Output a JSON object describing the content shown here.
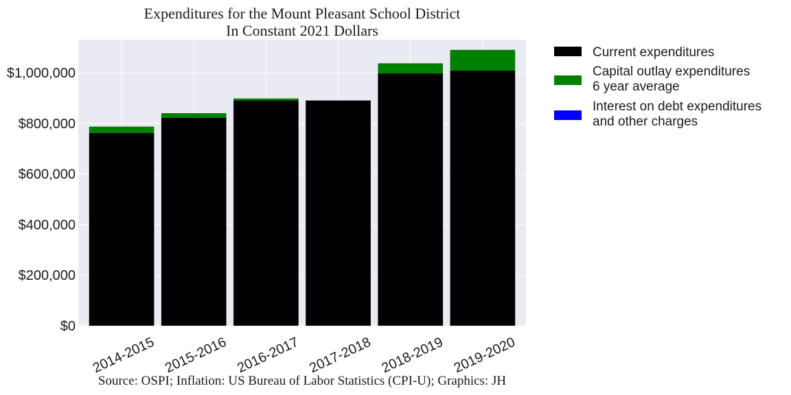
{
  "chart_data": {
    "type": "bar",
    "stacked": true,
    "title": [
      "Expenditures for the Mount Pleasant School District",
      "In Constant 2021 Dollars"
    ],
    "xlabel": "",
    "ylabel": "",
    "categories": [
      "2014-2015",
      "2015-2016",
      "2016-2017",
      "2017-2018",
      "2018-2019",
      "2019-2020"
    ],
    "ylim": [
      0,
      1130000
    ],
    "yticks": [
      0,
      200000,
      400000,
      600000,
      800000,
      1000000
    ],
    "ytick_labels": [
      "$0",
      "$200,000",
      "$400,000",
      "$600,000",
      "$800,000",
      "$1,000,000"
    ],
    "grid": true,
    "legend_position": "right",
    "series": [
      {
        "name": "Current expenditures",
        "color": "#000000",
        "values": [
          762000,
          822000,
          890000,
          890000,
          997000,
          1008000
        ]
      },
      {
        "name": "Capital outlay expenditures\n6 year average",
        "color": "#008000",
        "values": [
          25000,
          18000,
          8000,
          0,
          40000,
          82000
        ]
      },
      {
        "name": "Interest on debt expenditures\nand other charges",
        "color": "#0000ff",
        "values": [
          0,
          0,
          0,
          0,
          0,
          0
        ]
      }
    ],
    "source": "Source: OSPI; Inflation: US Bureau of Labor Statistics (CPI-U); Graphics: JH"
  }
}
